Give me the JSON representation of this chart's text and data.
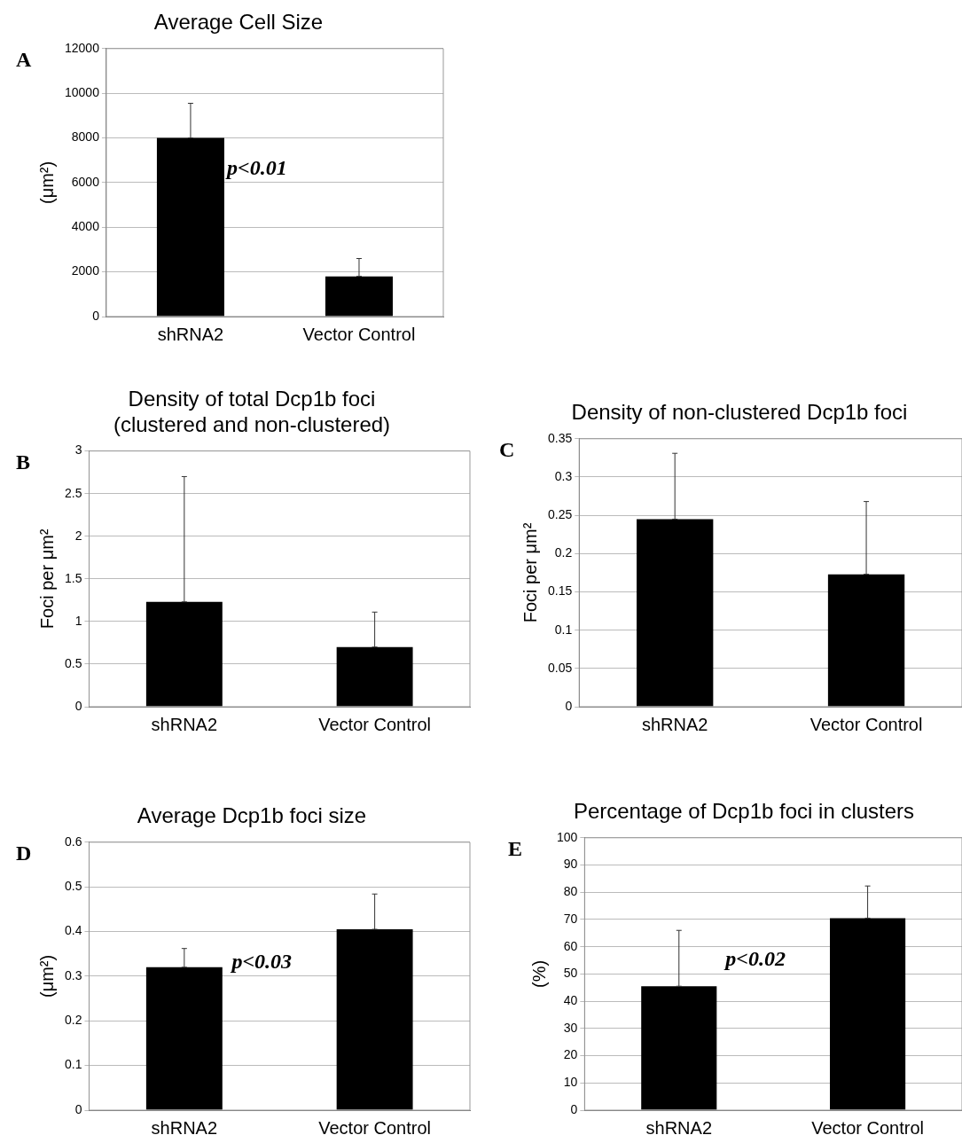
{
  "chart_data": [
    {
      "type": "bar",
      "title": "Average Cell Size",
      "ylabel": "(μm²)",
      "categories": [
        "shRNA2",
        "Vector Control"
      ],
      "values": [
        8000,
        1800
      ],
      "errors": [
        [
          8000,
          9550
        ],
        [
          1800,
          2600
        ]
      ],
      "color": "#000000",
      "ylim": [
        0,
        12000
      ],
      "yticks": [
        0,
        2000,
        4000,
        6000,
        8000,
        10000,
        12000
      ],
      "grid": "y",
      "annotations": [
        "A",
        "p<0.01"
      ]
    },
    {
      "type": "bar",
      "title": "Density of total Dcp1b foci\n(clustered and non-clustered)",
      "ylabel": "Foci per μm²",
      "categories": [
        "shRNA2",
        "Vector Control"
      ],
      "values": [
        1.23,
        0.7
      ],
      "errors": [
        [
          1.23,
          2.7
        ],
        [
          0.7,
          1.11
        ]
      ],
      "color": "#000000",
      "ylim": [
        0,
        3
      ],
      "yticks": [
        0,
        0.5,
        1,
        1.5,
        2,
        2.5,
        3
      ],
      "grid": "y",
      "annotations": [
        "B"
      ]
    },
    {
      "type": "bar",
      "title": "Density of non-clustered Dcp1b foci",
      "ylabel": "Foci per μm²",
      "categories": [
        "shRNA2",
        "Vector Control"
      ],
      "values": [
        0.245,
        0.173
      ],
      "errors": [
        [
          0.245,
          0.331
        ],
        [
          0.173,
          0.268
        ]
      ],
      "color": "#000000",
      "ylim": [
        0,
        0.35
      ],
      "yticks": [
        0,
        0.05,
        0.1,
        0.15,
        0.2,
        0.25,
        0.3,
        0.35
      ],
      "grid": "y",
      "annotations": [
        "C"
      ]
    },
    {
      "type": "bar",
      "title": "Average Dcp1b foci size",
      "ylabel": "(μm²)",
      "categories": [
        "shRNA2",
        "Vector Control"
      ],
      "values": [
        0.32,
        0.405
      ],
      "errors": [
        [
          0.32,
          0.362
        ],
        [
          0.405,
          0.484
        ]
      ],
      "color": "#000000",
      "ylim": [
        0,
        0.6
      ],
      "yticks": [
        0,
        0.1,
        0.2,
        0.3,
        0.4,
        0.5,
        0.6
      ],
      "grid": "y",
      "annotations": [
        "D",
        "p<0.03"
      ]
    },
    {
      "type": "bar",
      "title": "Percentage of Dcp1b foci in clusters",
      "ylabel": "(%)",
      "categories": [
        "shRNA2",
        "Vector Control"
      ],
      "values": [
        45.5,
        70.5
      ],
      "errors": [
        [
          45.5,
          66
        ],
        [
          70.5,
          82.3
        ]
      ],
      "color": "#000000",
      "ylim": [
        0,
        100
      ],
      "yticks": [
        0,
        10,
        20,
        30,
        40,
        50,
        60,
        70,
        80,
        90,
        100
      ],
      "grid": "y",
      "annotations": [
        "E",
        "p<0.02"
      ]
    }
  ]
}
